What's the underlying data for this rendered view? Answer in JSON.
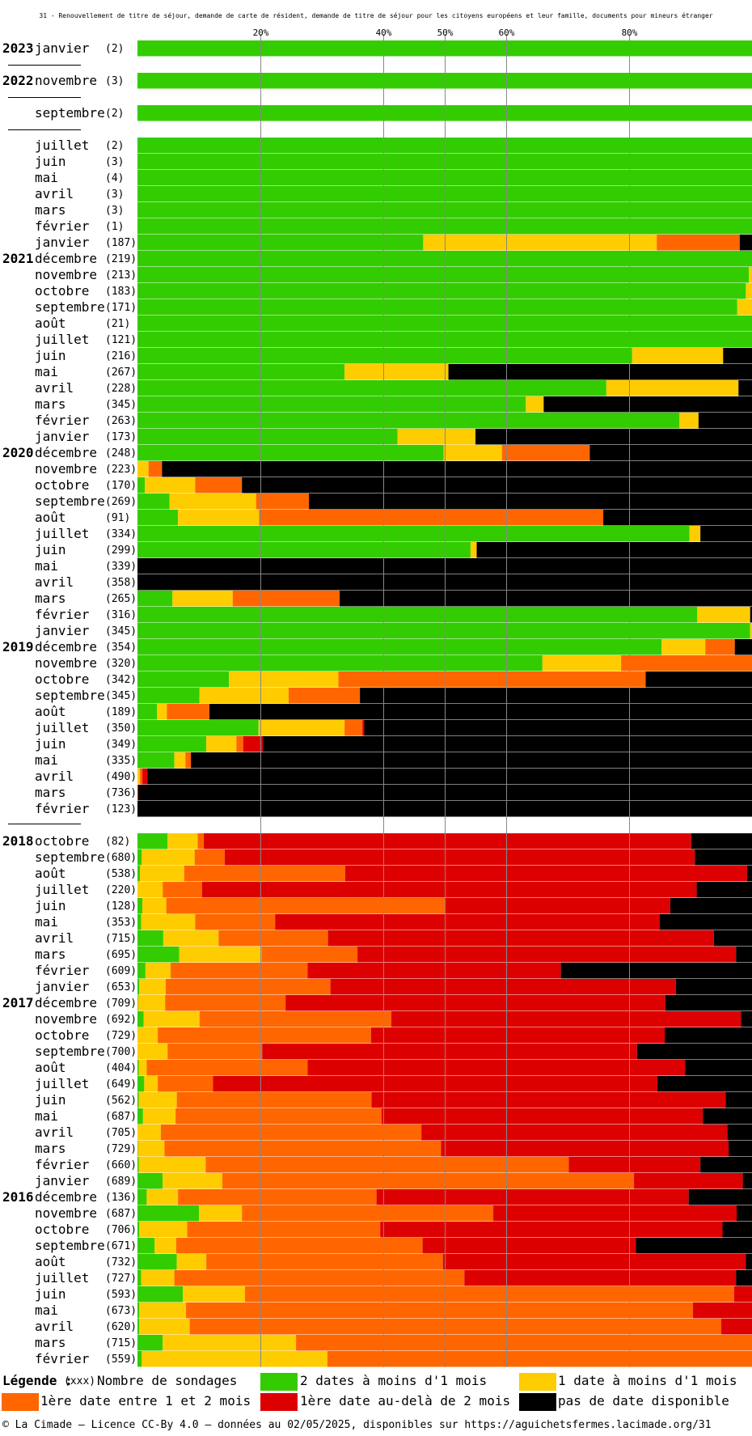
{
  "chart_data": {
    "type": "bar",
    "title": "31 - Renouvellement de titre de séjour, demande de carte de résident, demande de titre de séjour pour les citoyens européens et leur famille, documents pour mineurs étranger",
    "xlim": [
      0,
      100
    ],
    "ticks": [
      "20%",
      "40%",
      "50%",
      "60%",
      "80%"
    ],
    "tick_values": [
      20,
      40,
      50,
      60,
      80
    ],
    "stacked": true,
    "grid": true,
    "colors": {
      "green": "#33cc00",
      "yellow": "#ffcc00",
      "orange": "#ff6600",
      "red": "#dd0000",
      "black": "#000000"
    },
    "series_order": [
      "green",
      "yellow",
      "orange",
      "red",
      "black"
    ],
    "rows": [
      {
        "year": "2023",
        "month": "janvier",
        "count": "(2)",
        "values": [
          100,
          0,
          0,
          0,
          0
        ]
      },
      {
        "year": "2022",
        "month": "novembre",
        "count": "(3)",
        "values": [
          100,
          0,
          0,
          0,
          0
        ]
      },
      {
        "year": "",
        "month": "septembre",
        "count": "(2)",
        "values": [
          100,
          0,
          0,
          0,
          0
        ]
      },
      {
        "year": "",
        "month": "juillet",
        "count": "(2)",
        "values": [
          100,
          0,
          0,
          0,
          0
        ]
      },
      {
        "year": "",
        "month": "juin",
        "count": "(3)",
        "values": [
          100,
          0,
          0,
          0,
          0
        ]
      },
      {
        "year": "",
        "month": "mai",
        "count": "(4)",
        "values": [
          100,
          0,
          0,
          0,
          0
        ]
      },
      {
        "year": "",
        "month": "avril",
        "count": "(3)",
        "values": [
          100,
          0,
          0,
          0,
          0
        ]
      },
      {
        "year": "",
        "month": "mars",
        "count": "(3)",
        "values": [
          100,
          0,
          0,
          0,
          0
        ]
      },
      {
        "year": "",
        "month": "février",
        "count": "(1)",
        "values": [
          100,
          0,
          0,
          0,
          0
        ]
      },
      {
        "year": "",
        "month": "janvier",
        "count": "(187)",
        "values": [
          46.5,
          38,
          13.5,
          0,
          2
        ]
      },
      {
        "year": "2021",
        "month": "décembre",
        "count": "(219)",
        "values": [
          100,
          0,
          0,
          0,
          0
        ]
      },
      {
        "year": "",
        "month": "novembre",
        "count": "(213)",
        "values": [
          99.5,
          0.5,
          0,
          0,
          0
        ]
      },
      {
        "year": "",
        "month": "octobre",
        "count": "(183)",
        "values": [
          99,
          1,
          0,
          0,
          0
        ]
      },
      {
        "year": "",
        "month": "septembre",
        "count": "(171)",
        "values": [
          97.6,
          2.4,
          0,
          0,
          0
        ]
      },
      {
        "year": "",
        "month": "août",
        "count": "(21)",
        "values": [
          100,
          0,
          0,
          0,
          0
        ]
      },
      {
        "year": "",
        "month": "juillet",
        "count": "(121)",
        "values": [
          100,
          0,
          0,
          0,
          0
        ]
      },
      {
        "year": "",
        "month": "juin",
        "count": "(216)",
        "values": [
          80.5,
          14.8,
          0,
          0,
          4.7
        ]
      },
      {
        "year": "",
        "month": "mai",
        "count": "(267)",
        "values": [
          33.7,
          16.9,
          0,
          0,
          49.4
        ]
      },
      {
        "year": "",
        "month": "avril",
        "count": "(228)",
        "values": [
          76.3,
          21.5,
          0,
          0,
          2.2
        ]
      },
      {
        "year": "",
        "month": "mars",
        "count": "(345)",
        "values": [
          63.2,
          2.9,
          0,
          0,
          33.9
        ]
      },
      {
        "year": "",
        "month": "février",
        "count": "(263)",
        "values": [
          88.2,
          3.1,
          0,
          0,
          8.7
        ]
      },
      {
        "year": "",
        "month": "janvier",
        "count": "(173)",
        "values": [
          42.3,
          12.7,
          0,
          0,
          45
        ]
      },
      {
        "year": "2020",
        "month": "décembre",
        "count": "(248)",
        "values": [
          49.8,
          9.5,
          14.3,
          0,
          26.4
        ]
      },
      {
        "year": "",
        "month": "novembre",
        "count": "(223)",
        "values": [
          0,
          1.8,
          2.2,
          0,
          96
        ]
      },
      {
        "year": "",
        "month": "octobre",
        "count": "(170)",
        "values": [
          1.2,
          8.2,
          7.6,
          0,
          83
        ]
      },
      {
        "year": "",
        "month": "septembre",
        "count": "(269)",
        "values": [
          5.2,
          14.1,
          8.6,
          0,
          72.1
        ]
      },
      {
        "year": "",
        "month": "août",
        "count": "(91)",
        "values": [
          6.6,
          13.2,
          56,
          0,
          24.2
        ]
      },
      {
        "year": "",
        "month": "juillet",
        "count": "(334)",
        "values": [
          89.8,
          1.8,
          0,
          0,
          8.4
        ]
      },
      {
        "year": "",
        "month": "juin",
        "count": "(299)",
        "values": [
          54.2,
          1,
          0,
          0,
          44.8
        ]
      },
      {
        "year": "",
        "month": "mai",
        "count": "(339)",
        "values": [
          0,
          0,
          0,
          0,
          100
        ]
      },
      {
        "year": "",
        "month": "avril",
        "count": "(358)",
        "values": [
          0,
          0,
          0,
          0,
          100
        ]
      },
      {
        "year": "",
        "month": "mars",
        "count": "(265)",
        "values": [
          5.7,
          9.8,
          17.4,
          0,
          67.1
        ]
      },
      {
        "year": "",
        "month": "février",
        "count": "(316)",
        "values": [
          91.1,
          8.6,
          0,
          0,
          0.3
        ]
      },
      {
        "year": "",
        "month": "janvier",
        "count": "(345)",
        "values": [
          99.7,
          0.3,
          0,
          0,
          0
        ]
      },
      {
        "year": "2019",
        "month": "décembre",
        "count": "(354)",
        "values": [
          85.3,
          7.1,
          4.8,
          0,
          2.8
        ]
      },
      {
        "year": "",
        "month": "novembre",
        "count": "(320)",
        "values": [
          65.9,
          12.8,
          21.3,
          0,
          0
        ]
      },
      {
        "year": "",
        "month": "octobre",
        "count": "(342)",
        "values": [
          14.9,
          17.8,
          50,
          0,
          17.3
        ]
      },
      {
        "year": "",
        "month": "septembre",
        "count": "(345)",
        "values": [
          10.1,
          14.5,
          11.6,
          0,
          63.8
        ]
      },
      {
        "year": "",
        "month": "août",
        "count": "(189)",
        "values": [
          3.2,
          1.6,
          6.9,
          0,
          88.3
        ]
      },
      {
        "year": "",
        "month": "juillet",
        "count": "(350)",
        "values": [
          19.7,
          14,
          2.9,
          0.3,
          63.1
        ]
      },
      {
        "year": "",
        "month": "juin",
        "count": "(349)",
        "values": [
          11.2,
          4.9,
          1.1,
          3.2,
          79.6
        ]
      },
      {
        "year": "",
        "month": "mai",
        "count": "(335)",
        "values": [
          6,
          1.8,
          0.9,
          0,
          91.3
        ]
      },
      {
        "year": "",
        "month": "avril",
        "count": "(490)",
        "values": [
          0,
          0.4,
          0.4,
          0.8,
          98.4
        ]
      },
      {
        "year": "",
        "month": "mars",
        "count": "(736)",
        "values": [
          0,
          0,
          0,
          0.1,
          99.9
        ]
      },
      {
        "year": "",
        "month": "février",
        "count": "(123)",
        "values": [
          0,
          0,
          0,
          0,
          100
        ]
      },
      {
        "year": "2018",
        "month": "octobre",
        "count": "(82)",
        "values": [
          4.9,
          4.9,
          1,
          79.3,
          9.9
        ]
      },
      {
        "year": "",
        "month": "septembre",
        "count": "(680)",
        "values": [
          0.7,
          8.6,
          4.9,
          76.5,
          9.3
        ]
      },
      {
        "year": "",
        "month": "août",
        "count": "(538)",
        "values": [
          0.4,
          7.2,
          26.2,
          65.4,
          0.8
        ]
      },
      {
        "year": "",
        "month": "juillet",
        "count": "(220)",
        "values": [
          0,
          4.1,
          6.4,
          80.5,
          9
        ]
      },
      {
        "year": "",
        "month": "juin",
        "count": "(128)",
        "values": [
          0.8,
          3.9,
          45.3,
          36.7,
          13.3
        ]
      },
      {
        "year": "",
        "month": "mai",
        "count": "(353)",
        "values": [
          0.6,
          8.8,
          13,
          62.6,
          15
        ]
      },
      {
        "year": "",
        "month": "avril",
        "count": "(715)",
        "values": [
          4.2,
          9,
          17.8,
          62.8,
          6.2
        ]
      },
      {
        "year": "",
        "month": "mars",
        "count": "(695)",
        "values": [
          6.8,
          13.4,
          15.6,
          61.6,
          2.6
        ]
      },
      {
        "year": "",
        "month": "février",
        "count": "(609)",
        "values": [
          1.3,
          4.1,
          22.3,
          41.2,
          31.1
        ]
      },
      {
        "year": "",
        "month": "janvier",
        "count": "(653)",
        "values": [
          0.3,
          4.3,
          26.8,
          56.2,
          12.4
        ]
      },
      {
        "year": "2017",
        "month": "décembre",
        "count": "(709)",
        "values": [
          0.1,
          4.4,
          19.6,
          61.8,
          14.1
        ]
      },
      {
        "year": "",
        "month": "novembre",
        "count": "(692)",
        "values": [
          1,
          9.1,
          31.2,
          56.9,
          1.8
        ]
      },
      {
        "year": "",
        "month": "octobre",
        "count": "(729)",
        "values": [
          0,
          3.3,
          34.7,
          47.8,
          14.2
        ]
      },
      {
        "year": "",
        "month": "septembre",
        "count": "(700)",
        "values": [
          0,
          4.9,
          15.4,
          61,
          18.7
        ]
      },
      {
        "year": "",
        "month": "août",
        "count": "(404)",
        "values": [
          0.2,
          1.3,
          26.2,
          61.4,
          10.9
        ]
      },
      {
        "year": "",
        "month": "juillet",
        "count": "(649)",
        "values": [
          1.1,
          2.2,
          9,
          72.3,
          15.4
        ]
      },
      {
        "year": "",
        "month": "juin",
        "count": "(562)",
        "values": [
          0.2,
          6.2,
          31.7,
          57.6,
          4.3
        ]
      },
      {
        "year": "",
        "month": "mai",
        "count": "(687)",
        "values": [
          0.9,
          5.3,
          33.5,
          52.3,
          8
        ]
      },
      {
        "year": "",
        "month": "avril",
        "count": "(705)",
        "values": [
          0,
          3.8,
          42.4,
          49.8,
          4
        ]
      },
      {
        "year": "",
        "month": "mars",
        "count": "(729)",
        "values": [
          0.1,
          4.3,
          45,
          46.8,
          3.8
        ]
      },
      {
        "year": "",
        "month": "février",
        "count": "(660)",
        "values": [
          0.2,
          10.9,
          59.1,
          21.4,
          8.4
        ]
      },
      {
        "year": "",
        "month": "janvier",
        "count": "(689)",
        "values": [
          4.1,
          9.7,
          67,
          17.7,
          1.5
        ]
      },
      {
        "year": "2016",
        "month": "décembre",
        "count": "(136)",
        "values": [
          1.5,
          5.1,
          32.3,
          50.8,
          10.3
        ]
      },
      {
        "year": "",
        "month": "novembre",
        "count": "(687)",
        "values": [
          10,
          7,
          40.9,
          39.6,
          2.5
        ]
      },
      {
        "year": "",
        "month": "octobre",
        "count": "(706)",
        "values": [
          0.3,
          7.8,
          31.4,
          55.7,
          4.8
        ]
      },
      {
        "year": "",
        "month": "septembre",
        "count": "(671)",
        "values": [
          2.8,
          3.5,
          40.1,
          34.7,
          18.9
        ]
      },
      {
        "year": "",
        "month": "août",
        "count": "(732)",
        "values": [
          6.4,
          4.8,
          38.5,
          49.3,
          1
        ]
      },
      {
        "year": "",
        "month": "juillet",
        "count": "(727)",
        "values": [
          0.6,
          5.4,
          47.2,
          44.2,
          2.6
        ]
      },
      {
        "year": "",
        "month": "juin",
        "count": "(593)",
        "values": [
          7.4,
          10.1,
          79.6,
          2.9,
          0
        ]
      },
      {
        "year": "",
        "month": "mai",
        "count": "(673)",
        "values": [
          0.3,
          7.6,
          82.5,
          9.6,
          0
        ]
      },
      {
        "year": "",
        "month": "avril",
        "count": "(620)",
        "values": [
          0.3,
          8.2,
          86.5,
          5,
          0
        ]
      },
      {
        "year": "",
        "month": "mars",
        "count": "(715)",
        "values": [
          4.1,
          21.7,
          74.2,
          0,
          0
        ]
      },
      {
        "year": "",
        "month": "février",
        "count": "(559)",
        "values": [
          0.7,
          30.2,
          69.1,
          0,
          0
        ]
      }
    ]
  },
  "legend": {
    "title": "Légende :",
    "count_marker": "(xxx)",
    "count_label": "Nombre de sondages",
    "items": [
      {
        "key": "green",
        "label": "2 dates à moins d'1 mois"
      },
      {
        "key": "yellow",
        "label": "1 date à moins d'1 mois"
      },
      {
        "key": "orange",
        "label": "1ère date entre 1 et 2 mois"
      },
      {
        "key": "red",
        "label": "1ère date au-delà de 2 mois"
      },
      {
        "key": "black",
        "label": "pas de date disponible"
      }
    ]
  },
  "footer": "© La Cimade — Licence CC-By 4.0 — données au 02/05/2025, disponibles sur https://aguichetsfermes.lacimade.org/31"
}
